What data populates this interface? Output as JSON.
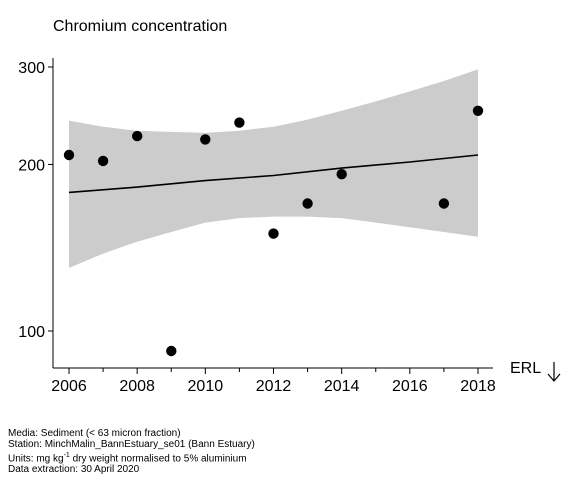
{
  "chart_data": {
    "type": "scatter",
    "title": "Chromium concentration",
    "xlabel": "",
    "ylabel": "",
    "x_ticks": [
      2006,
      2008,
      2010,
      2012,
      2014,
      2016,
      2018
    ],
    "y_ticks": [
      100,
      200,
      300
    ],
    "y_scale": "log",
    "xlim": [
      2005.5,
      2018.5
    ],
    "ylim": [
      90,
      305
    ],
    "grid": false,
    "points": [
      {
        "x": 2006,
        "y": 208
      },
      {
        "x": 2007,
        "y": 203
      },
      {
        "x": 2008,
        "y": 225
      },
      {
        "x": 2009,
        "y": 92
      },
      {
        "x": 2010,
        "y": 222
      },
      {
        "x": 2011,
        "y": 238
      },
      {
        "x": 2012,
        "y": 150
      },
      {
        "x": 2013,
        "y": 170
      },
      {
        "x": 2014,
        "y": 192
      },
      {
        "x": 2017,
        "y": 170
      },
      {
        "x": 2018,
        "y": 250
      }
    ],
    "trend": {
      "x": [
        2006,
        2008,
        2010,
        2012,
        2014,
        2016,
        2018
      ],
      "y": [
        178,
        182,
        187,
        191,
        197,
        202,
        208
      ]
    },
    "band": {
      "x": [
        2006,
        2007,
        2008,
        2009,
        2010,
        2011,
        2012,
        2013,
        2014,
        2015,
        2016,
        2017,
        2018
      ],
      "lower": [
        130,
        138,
        145,
        151,
        157,
        160,
        161,
        161,
        160,
        157,
        154,
        151,
        148
      ],
      "upper": [
        240,
        234,
        230,
        229,
        228,
        230,
        234,
        241,
        250,
        260,
        271,
        283,
        297
      ]
    },
    "band_color": "#cccccc",
    "marker_color": "#000000",
    "annotation": "ERL",
    "annotation_icon": "down-arrow-icon"
  },
  "footer": {
    "media": "Media: Sediment (< 63 micron fraction)",
    "station": "Station: MinchMalin_BannEstuary_se01 (Bann Estuary)",
    "units_prefix": "Units:  mg kg",
    "units_sup": "-1",
    "units_suffix": " dry weight normalised to 5% aluminium",
    "extraction": "Data extraction: 30 April 2020"
  }
}
